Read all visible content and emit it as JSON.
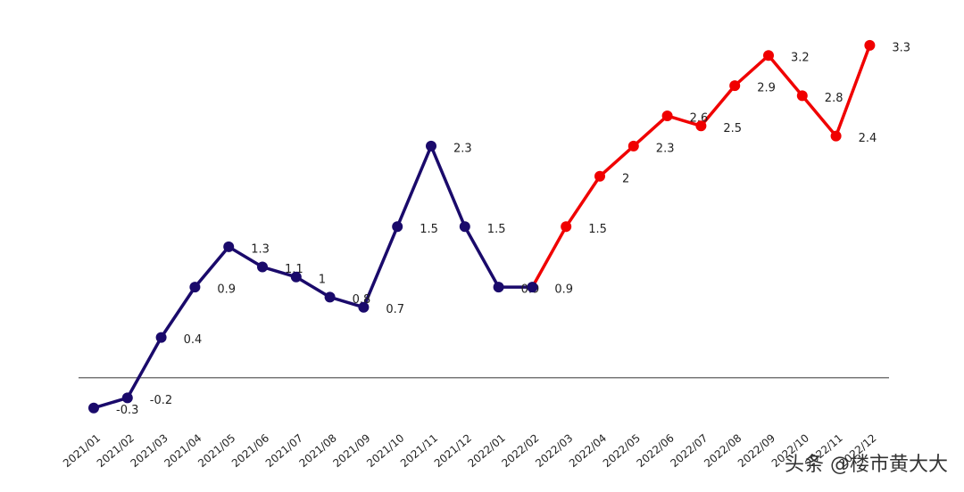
{
  "chart_data": {
    "type": "line",
    "categories": [
      "2021/01",
      "2021/02",
      "2021/03",
      "2021/04",
      "2021/05",
      "2021/06",
      "2021/07",
      "2021/08",
      "2021/09",
      "2021/10",
      "2021/11",
      "2021/12",
      "2022/01",
      "2022/02",
      "2022/03",
      "2022/04",
      "2022/05",
      "2022/06",
      "2022/07",
      "2022/08",
      "2022/09",
      "2022/10",
      "2022/11",
      "2022/12"
    ],
    "series": [
      {
        "color": "#1a0a6b",
        "values": [
          -0.3,
          -0.2,
          0.4,
          0.9,
          1.3,
          1.1,
          1.0,
          0.8,
          0.7,
          1.5,
          2.3,
          1.5,
          0.9,
          0.9,
          null,
          null,
          null,
          null,
          null,
          null,
          null,
          null,
          null,
          null
        ]
      },
      {
        "color": "#f00000",
        "values": [
          null,
          null,
          null,
          null,
          null,
          null,
          null,
          null,
          null,
          null,
          null,
          null,
          null,
          0.9,
          1.5,
          2.0,
          2.3,
          2.6,
          2.5,
          2.9,
          3.2,
          2.8,
          2.4,
          3.3
        ]
      }
    ],
    "ylim": [
      -0.4,
      3.6
    ],
    "watermark": "头条 @楼市黄大大"
  }
}
